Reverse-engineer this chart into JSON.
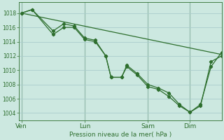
{
  "bg_color": "#cce8e0",
  "grid_color": "#aacccc",
  "line_color": "#2d6e2d",
  "marker_color": "#2d6e2d",
  "xlabel": "Pression niveau de la mer( hPa )",
  "yticks": [
    1004,
    1006,
    1008,
    1010,
    1012,
    1014,
    1016,
    1018
  ],
  "ylim": [
    1003.0,
    1019.5
  ],
  "xtick_labels": [
    "Ven",
    "Lun",
    "Sam",
    "Dim"
  ],
  "xtick_positions": [
    0,
    24,
    48,
    64
  ],
  "xlim": [
    -1,
    76
  ],
  "vlines": [
    0,
    24,
    48,
    64
  ],
  "trend_x": [
    0,
    76
  ],
  "trend_y": [
    1018.0,
    1012.2
  ],
  "series1_x": [
    0,
    4,
    12,
    16,
    20,
    24,
    28,
    32,
    34,
    38,
    40,
    44,
    48,
    52,
    56,
    60,
    64,
    68,
    72,
    76
  ],
  "series1_y": [
    1018.0,
    1018.5,
    1015.5,
    1016.5,
    1016.2,
    1014.5,
    1014.2,
    1012.0,
    1009.0,
    1009.0,
    1010.7,
    1009.5,
    1008.0,
    1007.5,
    1006.8,
    1005.2,
    1004.1,
    1005.2,
    1010.5,
    1012.5
  ],
  "series2_x": [
    0,
    4,
    12,
    16,
    20,
    24,
    28,
    32,
    34,
    38,
    40,
    44,
    48,
    52,
    56,
    60,
    64,
    68,
    72,
    76
  ],
  "series2_y": [
    1018.0,
    1018.5,
    1015.0,
    1016.0,
    1016.0,
    1014.3,
    1014.0,
    1012.0,
    1009.0,
    1009.0,
    1010.5,
    1009.3,
    1007.7,
    1007.3,
    1006.3,
    1005.0,
    1004.1,
    1005.0,
    1011.2,
    1012.0
  ]
}
